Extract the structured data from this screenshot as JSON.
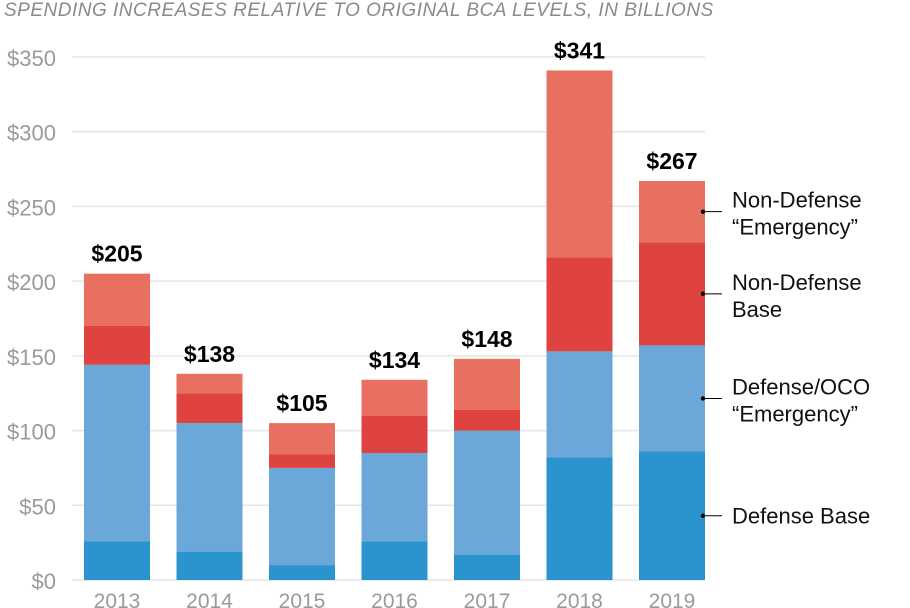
{
  "chart_data": {
    "type": "bar",
    "stacked": true,
    "title": "SPENDING INCREASES RELATIVE TO ORIGINAL BCA LEVELS, IN BILLIONS",
    "categories": [
      "2013",
      "2014",
      "2015",
      "2016",
      "2017",
      "2018",
      "2019"
    ],
    "series": [
      {
        "name": "Defense Base",
        "color": "#2b93cd",
        "values": [
          26,
          19,
          10,
          26,
          17,
          82,
          86
        ]
      },
      {
        "name": "Defense/OCO “Emergency”",
        "color": "#6ca7d9",
        "values": [
          118,
          86,
          65,
          59,
          83,
          71,
          71
        ]
      },
      {
        "name": "Non-Defense Base",
        "color": "#de4340",
        "values": [
          26,
          20,
          9,
          25,
          14,
          63,
          69
        ]
      },
      {
        "name": "Non-Defense “Emergency”",
        "color": "#e87060",
        "values": [
          35,
          13,
          21,
          24,
          34,
          125,
          41
        ]
      }
    ],
    "totals": [
      "$205",
      "$138",
      "$105",
      "$134",
      "$148",
      "$341",
      "$267"
    ],
    "yticks": [
      "$0",
      "$50",
      "$100",
      "$150",
      "$200",
      "$250",
      "$300",
      "$350"
    ],
    "ytick_values": [
      0,
      50,
      100,
      150,
      200,
      250,
      300,
      350
    ],
    "ylim": [
      0,
      350
    ],
    "grid": true,
    "legend_placement": "right",
    "legend_labels": [
      [
        "Non-Defense",
        "“Emergency”"
      ],
      [
        "Non-Defense",
        "Base"
      ],
      [
        "Defense/OCO",
        "“Emergency”"
      ],
      [
        "Defense Base"
      ]
    ]
  }
}
